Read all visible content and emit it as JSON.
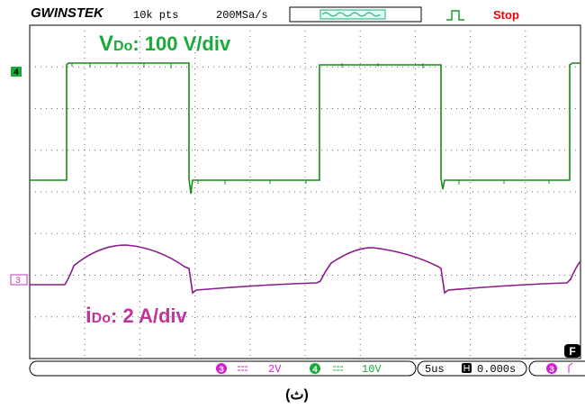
{
  "header": {
    "brand": "GWINSTEK",
    "points": "10k pts",
    "sample_rate": "200MSa/s",
    "status": "Stop"
  },
  "annotations": {
    "voltage": {
      "symbol": "V",
      "subscript": "Do",
      "scale": ": 100 V/div"
    },
    "current": {
      "symbol": "i",
      "subscript": "Do",
      "scale": ": 2 A/div"
    }
  },
  "markers": {
    "ch4": "4",
    "ch3": "3"
  },
  "footer": {
    "ch3": "3",
    "ch3_scale": "2V",
    "ch4": "4",
    "ch4_scale": "10V",
    "timebase": "5us",
    "trigger_time": "0.000s",
    "trigger_ch": "3",
    "menu": "F"
  },
  "caption": "(ث)"
}
